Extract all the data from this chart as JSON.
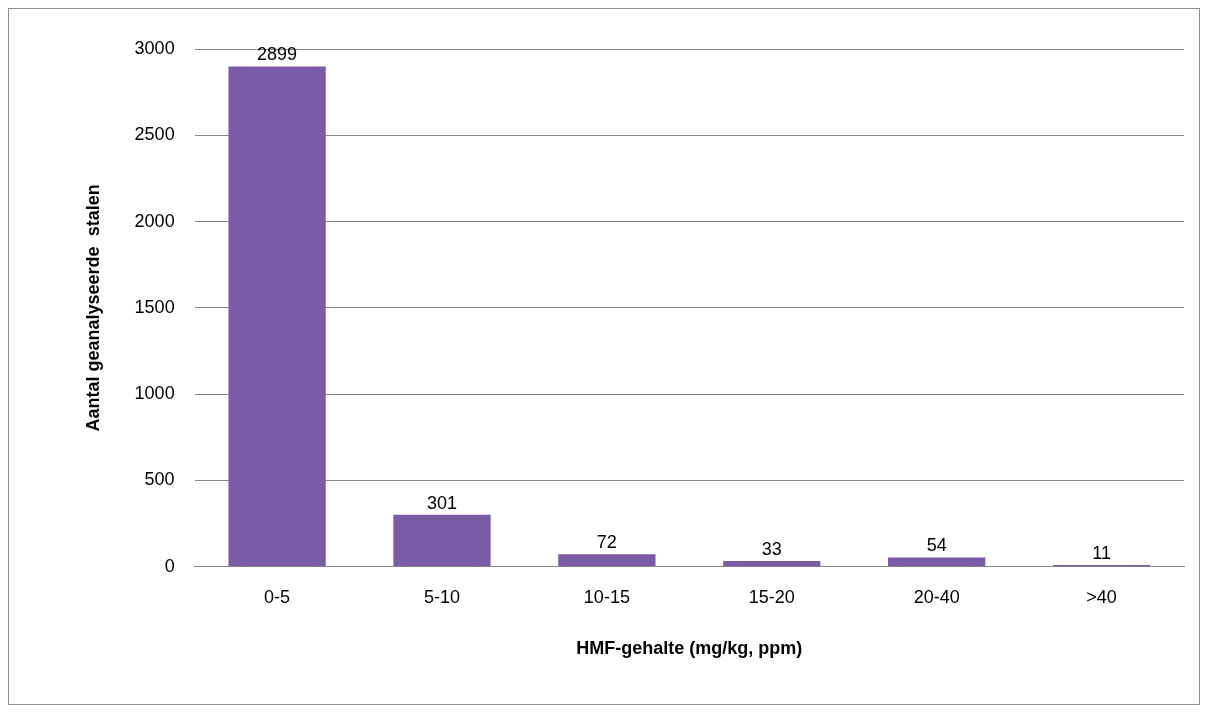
{
  "chart_data": {
    "type": "bar",
    "xlabel": "HMF-gehalte (mg/kg, ppm)",
    "ylabel": "Aantal geanalyseerde  stalen",
    "categories": [
      "0-5",
      "5-10",
      "10-15",
      "15-20",
      "20-40",
      ">40"
    ],
    "values": [
      2899,
      301,
      72,
      33,
      54,
      11
    ],
    "color": "#7b5aa6",
    "ylim": [
      0,
      3000
    ],
    "yticks": [
      0,
      500,
      1000,
      1500,
      2000,
      2500,
      3000
    ],
    "grid": "y",
    "data_labels": true
  }
}
